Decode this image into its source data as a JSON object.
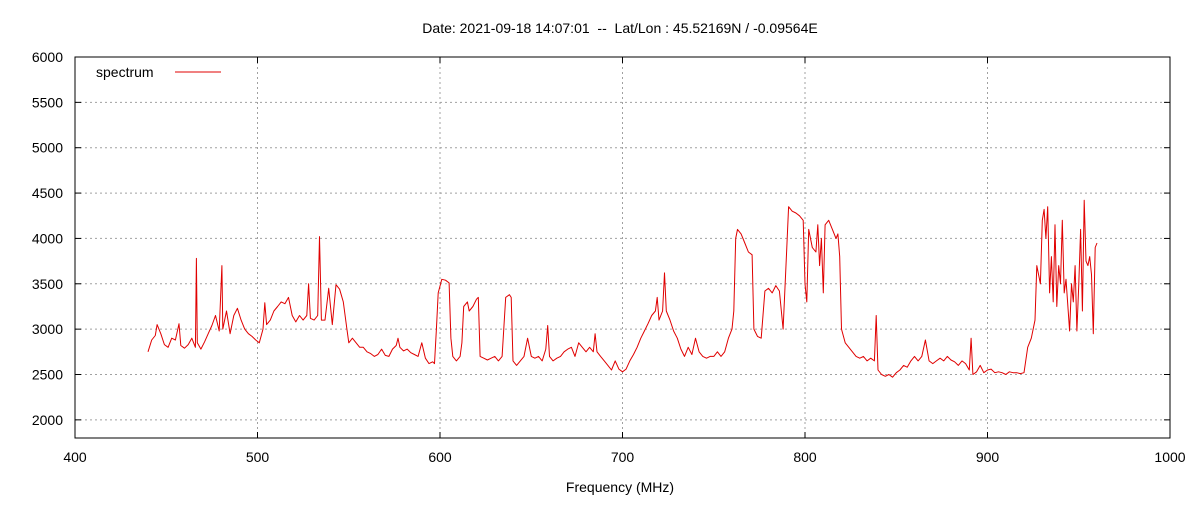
{
  "chart_data": {
    "type": "line",
    "title": "Date: 2021-09-18 14:07:01  --  Lat/Lon : 45.52169N / -0.09564E",
    "xlabel": "Frequency (MHz)",
    "ylabel": "",
    "xlim": [
      400,
      1000
    ],
    "ylim": [
      1800,
      6000
    ],
    "xticks": [
      400,
      500,
      600,
      700,
      800,
      900,
      1000
    ],
    "yticks": [
      2000,
      2500,
      3000,
      3500,
      4000,
      4500,
      5000,
      5500,
      6000
    ],
    "grid": true,
    "legend_position": "top-left",
    "series": [
      {
        "name": "spectrum",
        "color": "#e00000",
        "points": [
          [
            440,
            2750
          ],
          [
            442,
            2880
          ],
          [
            444,
            2930
          ],
          [
            445,
            3050
          ],
          [
            447,
            2950
          ],
          [
            449,
            2830
          ],
          [
            451,
            2800
          ],
          [
            453,
            2900
          ],
          [
            455,
            2880
          ],
          [
            457,
            3060
          ],
          [
            458,
            2820
          ],
          [
            460,
            2790
          ],
          [
            462,
            2830
          ],
          [
            464,
            2900
          ],
          [
            466,
            2800
          ],
          [
            466.5,
            3780
          ],
          [
            467,
            2850
          ],
          [
            469,
            2780
          ],
          [
            471,
            2860
          ],
          [
            473,
            2950
          ],
          [
            475,
            3040
          ],
          [
            477,
            3150
          ],
          [
            479,
            2980
          ],
          [
            480.5,
            3700
          ],
          [
            481,
            3000
          ],
          [
            483,
            3200
          ],
          [
            485,
            2950
          ],
          [
            487,
            3150
          ],
          [
            489,
            3230
          ],
          [
            491,
            3100
          ],
          [
            493,
            3000
          ],
          [
            495,
            2950
          ],
          [
            497,
            2920
          ],
          [
            499,
            2880
          ],
          [
            501,
            2850
          ],
          [
            503,
            3000
          ],
          [
            504,
            3290
          ],
          [
            505,
            3050
          ],
          [
            507,
            3100
          ],
          [
            509,
            3200
          ],
          [
            511,
            3250
          ],
          [
            513,
            3300
          ],
          [
            515,
            3280
          ],
          [
            517,
            3350
          ],
          [
            519,
            3150
          ],
          [
            521,
            3080
          ],
          [
            523,
            3150
          ],
          [
            525,
            3100
          ],
          [
            527,
            3150
          ],
          [
            528,
            3500
          ],
          [
            529,
            3120
          ],
          [
            531,
            3100
          ],
          [
            533,
            3150
          ],
          [
            534,
            4020
          ],
          [
            535,
            3100
          ],
          [
            537,
            3100
          ],
          [
            539,
            3450
          ],
          [
            541,
            3050
          ],
          [
            543,
            3490
          ],
          [
            545,
            3440
          ],
          [
            547,
            3300
          ],
          [
            549,
            3000
          ],
          [
            550,
            2850
          ],
          [
            552,
            2900
          ],
          [
            554,
            2850
          ],
          [
            556,
            2800
          ],
          [
            558,
            2800
          ],
          [
            560,
            2750
          ],
          [
            562,
            2730
          ],
          [
            564,
            2700
          ],
          [
            566,
            2720
          ],
          [
            568,
            2780
          ],
          [
            570,
            2710
          ],
          [
            572,
            2700
          ],
          [
            574,
            2780
          ],
          [
            576,
            2820
          ],
          [
            577,
            2900
          ],
          [
            578,
            2800
          ],
          [
            580,
            2760
          ],
          [
            582,
            2780
          ],
          [
            584,
            2740
          ],
          [
            586,
            2720
          ],
          [
            588,
            2700
          ],
          [
            590,
            2850
          ],
          [
            592,
            2680
          ],
          [
            594,
            2620
          ],
          [
            596,
            2640
          ],
          [
            597,
            2620
          ],
          [
            598,
            3000
          ],
          [
            599,
            3400
          ],
          [
            601,
            3550
          ],
          [
            603,
            3540
          ],
          [
            605,
            3510
          ],
          [
            606,
            2900
          ],
          [
            607,
            2700
          ],
          [
            609,
            2650
          ],
          [
            611,
            2700
          ],
          [
            612,
            2850
          ],
          [
            613,
            3250
          ],
          [
            615,
            3300
          ],
          [
            616,
            3200
          ],
          [
            618,
            3250
          ],
          [
            620,
            3330
          ],
          [
            621,
            3350
          ],
          [
            622,
            2700
          ],
          [
            624,
            2680
          ],
          [
            626,
            2660
          ],
          [
            628,
            2680
          ],
          [
            630,
            2700
          ],
          [
            632,
            2650
          ],
          [
            634,
            2700
          ],
          [
            636,
            3350
          ],
          [
            638,
            3380
          ],
          [
            639,
            3350
          ],
          [
            640,
            2650
          ],
          [
            642,
            2600
          ],
          [
            644,
            2650
          ],
          [
            646,
            2700
          ],
          [
            648,
            2900
          ],
          [
            650,
            2700
          ],
          [
            652,
            2680
          ],
          [
            654,
            2700
          ],
          [
            656,
            2650
          ],
          [
            658,
            2780
          ],
          [
            659,
            3040
          ],
          [
            660,
            2700
          ],
          [
            662,
            2650
          ],
          [
            664,
            2680
          ],
          [
            666,
            2700
          ],
          [
            668,
            2750
          ],
          [
            670,
            2780
          ],
          [
            672,
            2800
          ],
          [
            674,
            2700
          ],
          [
            676,
            2850
          ],
          [
            678,
            2800
          ],
          [
            680,
            2750
          ],
          [
            682,
            2800
          ],
          [
            684,
            2750
          ],
          [
            685,
            2950
          ],
          [
            686,
            2750
          ],
          [
            688,
            2700
          ],
          [
            690,
            2650
          ],
          [
            692,
            2600
          ],
          [
            694,
            2550
          ],
          [
            696,
            2650
          ],
          [
            698,
            2560
          ],
          [
            700,
            2530
          ],
          [
            702,
            2560
          ],
          [
            704,
            2650
          ],
          [
            706,
            2720
          ],
          [
            708,
            2800
          ],
          [
            710,
            2900
          ],
          [
            712,
            2980
          ],
          [
            714,
            3060
          ],
          [
            716,
            3150
          ],
          [
            718,
            3200
          ],
          [
            719,
            3350
          ],
          [
            720,
            3100
          ],
          [
            722,
            3200
          ],
          [
            723,
            3620
          ],
          [
            724,
            3200
          ],
          [
            726,
            3100
          ],
          [
            728,
            2980
          ],
          [
            730,
            2900
          ],
          [
            732,
            2780
          ],
          [
            734,
            2700
          ],
          [
            736,
            2800
          ],
          [
            738,
            2720
          ],
          [
            740,
            2900
          ],
          [
            742,
            2750
          ],
          [
            744,
            2700
          ],
          [
            746,
            2680
          ],
          [
            748,
            2700
          ],
          [
            750,
            2700
          ],
          [
            752,
            2750
          ],
          [
            754,
            2700
          ],
          [
            756,
            2750
          ],
          [
            758,
            2900
          ],
          [
            760,
            3000
          ],
          [
            761,
            3200
          ],
          [
            762,
            4000
          ],
          [
            763,
            4100
          ],
          [
            765,
            4050
          ],
          [
            767,
            3950
          ],
          [
            769,
            3850
          ],
          [
            771,
            3820
          ],
          [
            772,
            3000
          ],
          [
            774,
            2920
          ],
          [
            776,
            2900
          ],
          [
            778,
            3420
          ],
          [
            780,
            3450
          ],
          [
            782,
            3400
          ],
          [
            784,
            3480
          ],
          [
            786,
            3420
          ],
          [
            788,
            3000
          ],
          [
            790,
            3900
          ],
          [
            791,
            4350
          ],
          [
            793,
            4300
          ],
          [
            795,
            4280
          ],
          [
            797,
            4250
          ],
          [
            799,
            4200
          ],
          [
            800,
            3500
          ],
          [
            801,
            3300
          ],
          [
            802,
            4100
          ],
          [
            804,
            3900
          ],
          [
            806,
            3850
          ],
          [
            807,
            4150
          ],
          [
            808,
            3700
          ],
          [
            809,
            4000
          ],
          [
            810,
            3400
          ],
          [
            811,
            4150
          ],
          [
            813,
            4200
          ],
          [
            815,
            4100
          ],
          [
            817,
            4000
          ],
          [
            818,
            4050
          ],
          [
            819,
            3800
          ],
          [
            820,
            3000
          ],
          [
            822,
            2850
          ],
          [
            824,
            2800
          ],
          [
            826,
            2750
          ],
          [
            828,
            2700
          ],
          [
            830,
            2680
          ],
          [
            832,
            2700
          ],
          [
            834,
            2650
          ],
          [
            836,
            2680
          ],
          [
            838,
            2650
          ],
          [
            839,
            3150
          ],
          [
            840,
            2550
          ],
          [
            842,
            2500
          ],
          [
            844,
            2480
          ],
          [
            846,
            2500
          ],
          [
            848,
            2470
          ],
          [
            850,
            2520
          ],
          [
            852,
            2550
          ],
          [
            854,
            2600
          ],
          [
            856,
            2580
          ],
          [
            858,
            2650
          ],
          [
            860,
            2700
          ],
          [
            862,
            2650
          ],
          [
            864,
            2700
          ],
          [
            866,
            2880
          ],
          [
            868,
            2650
          ],
          [
            870,
            2620
          ],
          [
            872,
            2650
          ],
          [
            874,
            2680
          ],
          [
            876,
            2650
          ],
          [
            878,
            2700
          ],
          [
            880,
            2660
          ],
          [
            882,
            2640
          ],
          [
            884,
            2600
          ],
          [
            886,
            2650
          ],
          [
            888,
            2620
          ],
          [
            890,
            2550
          ],
          [
            891,
            2900
          ],
          [
            892,
            2500
          ],
          [
            894,
            2530
          ],
          [
            896,
            2600
          ],
          [
            898,
            2520
          ],
          [
            900,
            2550
          ],
          [
            902,
            2560
          ],
          [
            904,
            2520
          ],
          [
            906,
            2530
          ],
          [
            908,
            2520
          ],
          [
            910,
            2500
          ],
          [
            912,
            2530
          ],
          [
            914,
            2520
          ],
          [
            916,
            2520
          ],
          [
            918,
            2510
          ],
          [
            920,
            2520
          ],
          [
            922,
            2800
          ],
          [
            924,
            2900
          ],
          [
            926,
            3100
          ],
          [
            927,
            3700
          ],
          [
            929,
            3500
          ],
          [
            930,
            4200
          ],
          [
            931,
            4320
          ],
          [
            932,
            4000
          ],
          [
            933,
            4350
          ],
          [
            934,
            3400
          ],
          [
            935,
            3800
          ],
          [
            936,
            3300
          ],
          [
            937,
            4150
          ],
          [
            938,
            3250
          ],
          [
            939,
            3700
          ],
          [
            940,
            3500
          ],
          [
            941,
            4200
          ],
          [
            942,
            3400
          ],
          [
            943,
            3550
          ],
          [
            945,
            2980
          ],
          [
            946,
            3500
          ],
          [
            947,
            3300
          ],
          [
            948,
            3700
          ],
          [
            949,
            2980
          ],
          [
            950,
            3500
          ],
          [
            951,
            4100
          ],
          [
            952,
            3200
          ],
          [
            953,
            4420
          ],
          [
            954,
            3750
          ],
          [
            955,
            3700
          ],
          [
            956,
            3800
          ],
          [
            957,
            3600
          ],
          [
            958,
            2950
          ],
          [
            959,
            3900
          ],
          [
            960,
            3950
          ]
        ]
      }
    ]
  }
}
